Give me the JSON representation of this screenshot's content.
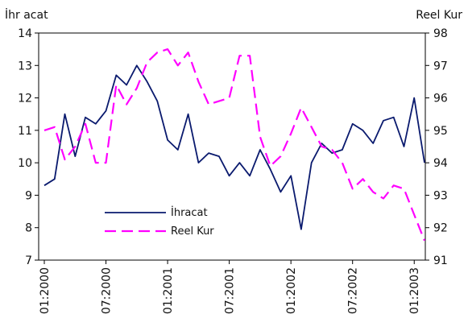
{
  "chart_data": {
    "type": "line",
    "y_left_label": "İhr acat",
    "y_right_label": "Reel Kur",
    "y_left_range": [
      7,
      14
    ],
    "y_right_range": [
      91,
      98
    ],
    "y_left_ticks": [
      "7",
      "8",
      "9",
      "10",
      "11",
      "12",
      "13",
      "14"
    ],
    "y_right_ticks": [
      "91",
      "92",
      "93",
      "94",
      "95",
      "96",
      "97",
      "98"
    ],
    "x_tick_labels": [
      "01:2000",
      "07:2000",
      "01:2001",
      "07:2001",
      "01:2002",
      "07:2002",
      "01:2003"
    ],
    "x_tick_index": [
      0,
      6,
      12,
      18,
      24,
      30,
      36
    ],
    "grid": false,
    "legend_position": "lower-left inside plot",
    "series": [
      {
        "name": "İhracat",
        "axis": "left",
        "color": "#0a1a6e",
        "style": "solid",
        "values": [
          9.3,
          9.5,
          11.5,
          10.2,
          11.4,
          11.2,
          11.6,
          12.7,
          12.4,
          13.0,
          12.5,
          11.9,
          10.7,
          10.4,
          11.5,
          10.0,
          10.3,
          10.2,
          9.6,
          10.0,
          9.6,
          10.4,
          9.8,
          9.1,
          9.6,
          7.95,
          10.0,
          10.6,
          10.3,
          10.4,
          11.2,
          11.0,
          10.6,
          11.3,
          11.4,
          10.5,
          12.0,
          10.0
        ]
      },
      {
        "name": "Reel Kur",
        "axis": "right",
        "color": "#ff00ff",
        "style": "dashed",
        "values": [
          95.0,
          95.1,
          94.1,
          94.5,
          95.2,
          94.0,
          94.0,
          96.4,
          95.8,
          96.3,
          97.1,
          97.4,
          97.5,
          97.0,
          97.4,
          96.5,
          95.8,
          95.9,
          96.0,
          97.3,
          97.3,
          94.8,
          93.9,
          94.2,
          94.9,
          95.7,
          95.1,
          94.5,
          94.4,
          94.0,
          93.2,
          93.5,
          93.1,
          92.9,
          93.3,
          93.2,
          92.4,
          91.6
        ]
      }
    ]
  }
}
